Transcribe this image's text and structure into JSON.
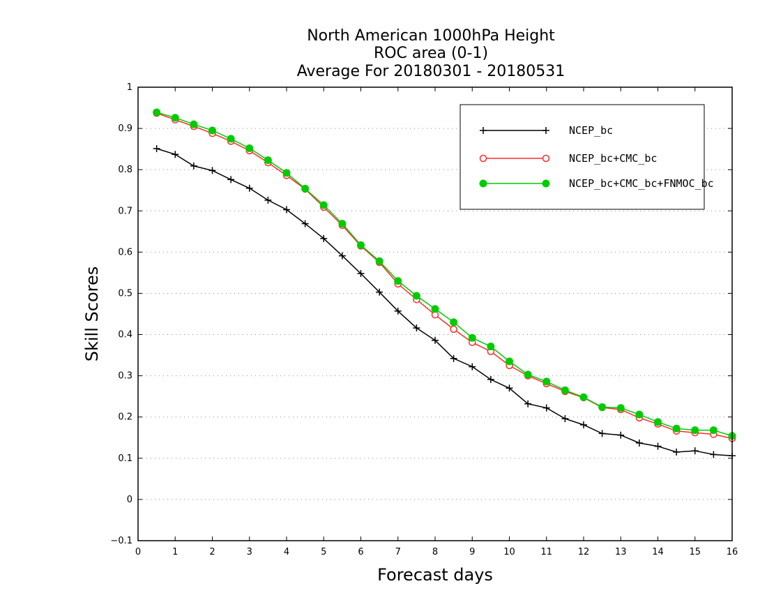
{
  "chart_data": {
    "type": "line",
    "title": [
      "North American 1000hPa Height",
      "ROC area (0-1)",
      "Average For 20180301 - 20180531"
    ],
    "xlabel": "Forecast days",
    "ylabel": "Skill Scores",
    "xlim": [
      0,
      16
    ],
    "ylim": [
      -0.1,
      1
    ],
    "xticks": [
      "0",
      "1",
      "2",
      "3",
      "4",
      "5",
      "6",
      "7",
      "8",
      "9",
      "10",
      "11",
      "12",
      "13",
      "14",
      "15",
      "16"
    ],
    "yticks": [
      "−0.1",
      "0",
      "0.1",
      "0.2",
      "0.3",
      "0.4",
      "0.5",
      "0.6",
      "0.7",
      "0.8",
      "0.9",
      "1"
    ],
    "grid": "horizontal-dotted",
    "legend_position": "top-right",
    "x": [
      0.5,
      1,
      1.5,
      2,
      2.5,
      3,
      3.5,
      4,
      4.5,
      5,
      5.5,
      6,
      6.5,
      7,
      7.5,
      8,
      8.5,
      9,
      9.5,
      10,
      10.5,
      11,
      11.5,
      12,
      12.5,
      13,
      13.5,
      14,
      14.5,
      15,
      15.5,
      16
    ],
    "series": [
      {
        "name": "NCEP_bc",
        "color": "#000000",
        "marker": "plus",
        "values": [
          0.851,
          0.837,
          0.809,
          0.798,
          0.776,
          0.755,
          0.726,
          0.703,
          0.669,
          0.633,
          0.591,
          0.548,
          0.503,
          0.457,
          0.416,
          0.386,
          0.342,
          0.322,
          0.291,
          0.27,
          0.232,
          0.222,
          0.196,
          0.181,
          0.16,
          0.156,
          0.137,
          0.129,
          0.115,
          0.118,
          0.109,
          0.106
        ]
      },
      {
        "name": "NCEP_bc+CMC_bc",
        "color": "#ff2a2a",
        "marker": "open-circle",
        "values": [
          0.937,
          0.921,
          0.905,
          0.888,
          0.869,
          0.846,
          0.817,
          0.786,
          0.753,
          0.709,
          0.665,
          0.615,
          0.575,
          0.523,
          0.485,
          0.448,
          0.413,
          0.381,
          0.359,
          0.325,
          0.3,
          0.281,
          0.262,
          0.247,
          0.223,
          0.218,
          0.198,
          0.183,
          0.166,
          0.162,
          0.158,
          0.148
        ]
      },
      {
        "name": "NCEP_bc+CMC_bc+FNMOC_bc",
        "color": "#00cc00",
        "marker": "filled-circle",
        "values": [
          0.939,
          0.926,
          0.91,
          0.895,
          0.875,
          0.852,
          0.823,
          0.792,
          0.754,
          0.714,
          0.669,
          0.617,
          0.578,
          0.53,
          0.494,
          0.462,
          0.43,
          0.392,
          0.371,
          0.335,
          0.303,
          0.286,
          0.265,
          0.248,
          0.224,
          0.222,
          0.206,
          0.188,
          0.172,
          0.168,
          0.168,
          0.154
        ]
      }
    ]
  }
}
